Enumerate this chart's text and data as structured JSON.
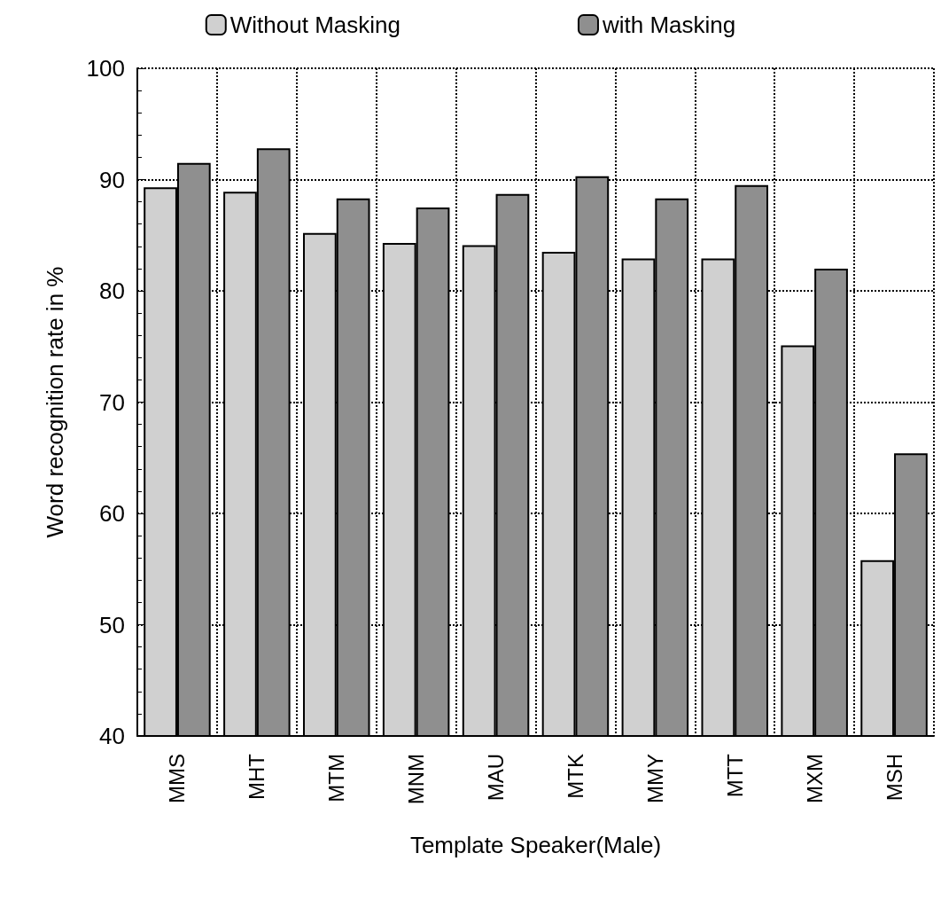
{
  "chart_data": {
    "type": "bar",
    "xlabel": "Template Speaker(Male)",
    "ylabel": "Word recognition rate in %",
    "categories": [
      "MMS",
      "MHT",
      "MTM",
      "MNM",
      "MAU",
      "MTK",
      "MMY",
      "MTT",
      "MXM",
      "MSH"
    ],
    "series": [
      {
        "name": "Without Masking",
        "color": "#d0d0d0",
        "values": [
          89.3,
          88.9,
          85.2,
          84.3,
          84.1,
          83.5,
          82.9,
          82.9,
          75.1,
          55.8
        ]
      },
      {
        "name": "with Masking",
        "color": "#8f8f8f",
        "values": [
          91.5,
          92.8,
          88.3,
          87.5,
          88.7,
          90.3,
          88.3,
          89.5,
          82.0,
          65.4
        ]
      }
    ],
    "ylim": [
      40,
      100
    ],
    "yticks": [
      40,
      50,
      60,
      70,
      80,
      90,
      100
    ],
    "grid": true,
    "legend": "top"
  }
}
